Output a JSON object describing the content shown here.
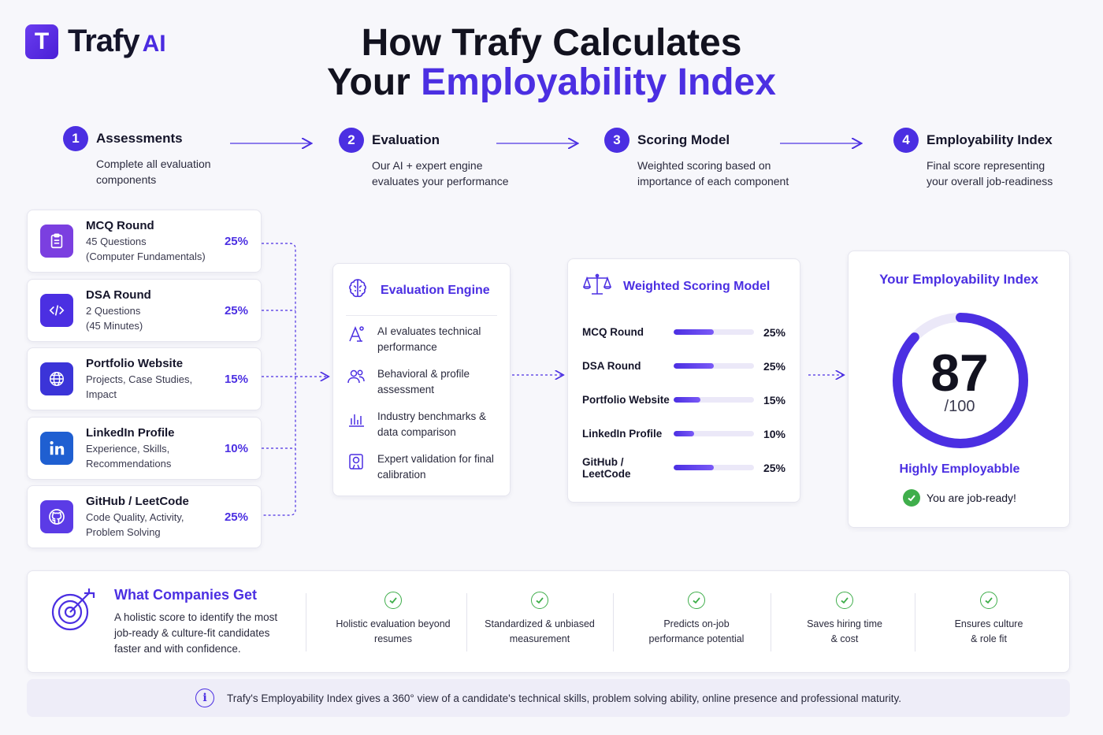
{
  "brand": {
    "letter": "T",
    "name": "Trafy",
    "suffix": "AI"
  },
  "title": {
    "line1": "How Trafy Calculates",
    "line2_prefix": "Your ",
    "line2_accent": "Employability Index"
  },
  "steps": [
    {
      "num": "1",
      "title": "Assessments",
      "desc": "Complete all evaluation components"
    },
    {
      "num": "2",
      "title": "Evaluation",
      "desc": "Our AI + expert engine evaluates your performance"
    },
    {
      "num": "3",
      "title": "Scoring Model",
      "desc": "Weighted scoring based on importance of each component"
    },
    {
      "num": "4",
      "title": "Employability Index",
      "desc": "Final score representing your overall job-readiness"
    }
  ],
  "components": [
    {
      "title": "MCQ Round",
      "line1": "45 Questions",
      "line2": "(Computer Fundamentals)",
      "pct": "25%",
      "icon": "clipboard-icon",
      "color": "#7b3fe0"
    },
    {
      "title": "DSA Round",
      "line1": "2 Questions",
      "line2": "(45 Minutes)",
      "pct": "25%",
      "icon": "code-icon",
      "color": "#4b2fe2"
    },
    {
      "title": "Portfolio Website",
      "line1": "Projects, Case Studies,",
      "line2": "Impact",
      "pct": "15%",
      "icon": "globe-icon",
      "color": "#3b34d8"
    },
    {
      "title": "LinkedIn Profile",
      "line1": "Experience, Skills,",
      "line2": "Recommendations",
      "pct": "10%",
      "icon": "linkedin-icon",
      "color": "#1f5fd1"
    },
    {
      "title": "GitHub / LeetCode",
      "line1": "Code Quality, Activity,",
      "line2": "Problem Solving",
      "pct": "25%",
      "icon": "github-icon",
      "color": "#5b3be6"
    }
  ],
  "engine": {
    "title": "Evaluation Engine",
    "items": [
      {
        "text": "AI evaluates technical performance",
        "icon": "ai-icon"
      },
      {
        "text": "Behavioral & profile assessment",
        "icon": "users-icon"
      },
      {
        "text": "Industry benchmarks & data comparison",
        "icon": "bar-chart-icon"
      },
      {
        "text": "Expert validation for final calibration",
        "icon": "badge-icon"
      }
    ]
  },
  "weighted": {
    "title": "Weighted Scoring Model",
    "rows": [
      {
        "label": "MCQ Round",
        "pct": "25%",
        "value": 0.5
      },
      {
        "label": "DSA Round",
        "pct": "25%",
        "value": 0.5
      },
      {
        "label": "Portfolio Website",
        "pct": "15%",
        "value": 0.33
      },
      {
        "label": "LinkedIn Profile",
        "pct": "10%",
        "value": 0.25
      },
      {
        "label": "GitHub / LeetCode",
        "pct": "25%",
        "value": 0.5
      }
    ]
  },
  "index": {
    "title": "Your Employability Index",
    "score": "87",
    "out_of": "/100",
    "score_fraction": 0.87,
    "status": "Highly Employabble",
    "ready": "You are job-ready!"
  },
  "companies": {
    "title": "What Companies Get",
    "desc": "A holistic score to identify the most job-ready & culture-fit candidates faster and with confidence.",
    "benefits": [
      {
        "line1": "Holistic evaluation beyond",
        "line2": "resumes"
      },
      {
        "line1": "Standardized & unbiased",
        "line2": "measurement"
      },
      {
        "line1": "Predicts on-job",
        "line2": "performance potential"
      },
      {
        "line1": "Saves hiring time",
        "line2": "& cost"
      },
      {
        "line1": "Ensures culture",
        "line2": "& role fit"
      }
    ]
  },
  "footer": {
    "text": "Trafy's Employability Index gives a 360° view of a candidate's technical skills, problem solving ability, online presence and professional maturity."
  },
  "colors": {
    "accent": "#4b2fe2",
    "success": "#3fae4b"
  }
}
